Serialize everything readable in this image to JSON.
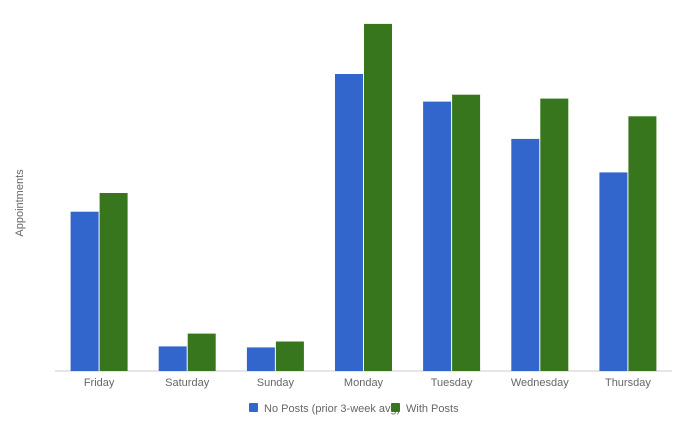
{
  "chart_data": {
    "type": "bar",
    "title": "",
    "xlabel": "",
    "ylabel": "Appointments",
    "categories": [
      "Friday",
      "Saturday",
      "Sunday",
      "Monday",
      "Tuesday",
      "Wednesday",
      "Thursday"
    ],
    "series": [
      {
        "name": "No Posts (prior 3-week avg)",
        "color": "#3366cc",
        "values": [
          162,
          25,
          24,
          302,
          274,
          236,
          202
        ]
      },
      {
        "name": "With Posts",
        "color": "#38761d",
        "values": [
          181,
          38,
          30,
          353,
          281,
          277,
          259
        ]
      }
    ],
    "ylim": [
      0,
      360
    ],
    "grid": false,
    "legend": "bottom"
  }
}
